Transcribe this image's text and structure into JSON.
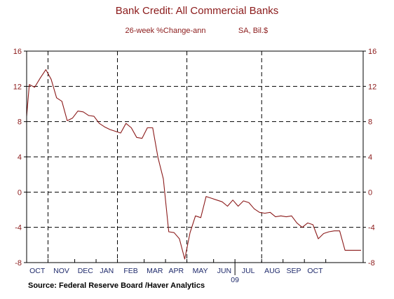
{
  "chart_data": {
    "type": "line",
    "title": "Bank Credit: All Commercial Banks",
    "subtitle_left": "26-week %Change-ann",
    "subtitle_right": "SA, Bil.$",
    "source": "Source:  Federal Reserve Board /Haver Analytics",
    "ylim": [
      -8,
      16
    ],
    "yticks": [
      16,
      12,
      8,
      4,
      0,
      -4,
      -8
    ],
    "ytick_labels": [
      "16",
      "12",
      "8",
      "4",
      "0",
      "-4",
      "-8"
    ],
    "xlim": [
      0,
      63
    ],
    "months": [
      {
        "label": "OCT",
        "start": 0,
        "end": 4
      },
      {
        "label": "NOV",
        "start": 4,
        "end": 9
      },
      {
        "label": "DEC",
        "start": 9,
        "end": 13
      },
      {
        "label": "JAN",
        "start": 13,
        "end": 17
      },
      {
        "label": "FEB",
        "start": 17,
        "end": 22
      },
      {
        "label": "MAR",
        "start": 22,
        "end": 26
      },
      {
        "label": "APR",
        "start": 26,
        "end": 30
      },
      {
        "label": "MAY",
        "start": 30,
        "end": 35
      },
      {
        "label": "JUN",
        "start": 35,
        "end": 39
      },
      {
        "label": "JUL",
        "start": 39,
        "end": 44
      },
      {
        "label": "AUG",
        "start": 44,
        "end": 48
      },
      {
        "label": "SEP",
        "start": 48,
        "end": 52
      },
      {
        "label": "OCT",
        "start": 52,
        "end": 56
      }
    ],
    "year_label": "09",
    "year_position": 39,
    "gridlines": "dashed",
    "series": [
      {
        "color": "#8b1a1a",
        "x": [
          0,
          0.5,
          1.5,
          2.6,
          3.6,
          4.6,
          5.6,
          6.6,
          7.6,
          8.6,
          9.6,
          10.6,
          11.6,
          12.6,
          13.6,
          14.6,
          15.6,
          16.6,
          17.6,
          18.6,
          19.6,
          20.6,
          21.6,
          22.6,
          23.6,
          24.6,
          25.6,
          26.6,
          27.6,
          28.6,
          29.6,
          30.6,
          31.6,
          32.6,
          33.6,
          34.6,
          35.6,
          36.6,
          37.6,
          38.6,
          39.6,
          40.6,
          41.6,
          42.6,
          43.6,
          44.6,
          45.6,
          46.6,
          47.6,
          48.6,
          49.6,
          50.6,
          51.6,
          52.6,
          53.6,
          54.6,
          55.6,
          56.6,
          57.6,
          58.6,
          59.6,
          60.6,
          61.6,
          62.6
        ],
        "y": [
          8.6,
          12.2,
          11.9,
          13.0,
          13.9,
          12.8,
          10.7,
          10.3,
          8.1,
          8.4,
          9.2,
          9.1,
          8.7,
          8.6,
          7.8,
          7.4,
          7.1,
          6.9,
          6.7,
          7.8,
          7.3,
          6.2,
          6.1,
          7.3,
          7.3,
          3.9,
          1.5,
          -4.5,
          -4.6,
          -5.3,
          -7.6,
          -4.6,
          -2.7,
          -2.9,
          -0.5,
          -0.7,
          -0.9,
          -1.1,
          -1.6,
          -0.9,
          -1.6,
          -1.0,
          -1.2,
          -1.9,
          -2.3,
          -2.4,
          -2.3,
          -2.8,
          -2.7,
          -2.8,
          -2.7,
          -3.5,
          -4.0,
          -3.5,
          -3.7,
          -5.3,
          -4.7,
          -4.5,
          -4.4,
          -4.4,
          -6.6,
          -6.6,
          -6.6,
          -6.6
        ]
      }
    ]
  }
}
